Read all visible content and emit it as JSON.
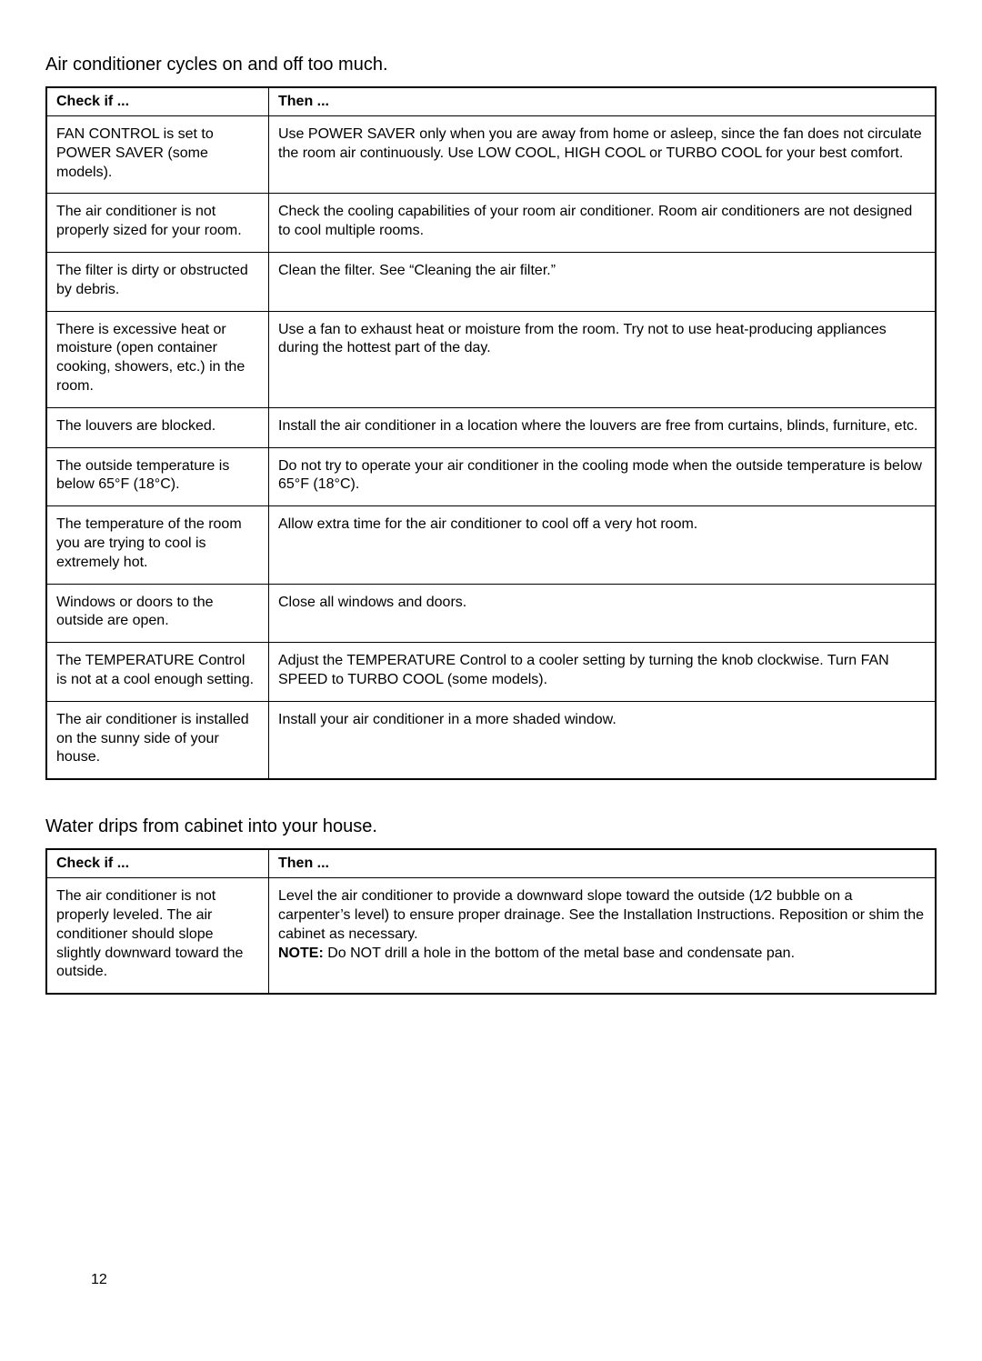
{
  "page_number": "12",
  "sections": [
    {
      "title": "Air conditioner cycles on and off too much.",
      "header_check": "Check if ...",
      "header_then": "Then ...",
      "rows": [
        {
          "check": "FAN CONTROL is set to POWER SAVER (some models).",
          "then": "Use POWER SAVER only when you are away from home or asleep, since the fan does not circulate the room air continuously. Use LOW COOL, HIGH COOL or TURBO COOL for your best comfort."
        },
        {
          "check": "The air conditioner is not properly sized for your room.",
          "then": "Check the cooling capabilities of your room air conditioner. Room air conditioners are not designed to cool multiple rooms."
        },
        {
          "check": "The filter is dirty or obstructed by debris.",
          "then": "Clean the filter. See “Cleaning the air filter.”"
        },
        {
          "check": "There is excessive heat or moisture (open container cooking, showers, etc.) in the room.",
          "then": "Use a fan to exhaust heat or moisture from the room. Try not to use heat-producing appliances during the hottest part of the day."
        },
        {
          "check": "The louvers are blocked.",
          "then": "Install the air conditioner in a location where the louvers are free from curtains, blinds, furniture, etc."
        },
        {
          "check": "The outside temperature is below 65°F (18°C).",
          "then": "Do not try to operate your air conditioner in the cooling mode when the outside temperature is below 65°F (18°C)."
        },
        {
          "check": "The temperature of the room you are trying to cool is extremely hot.",
          "then": "Allow extra time for the air conditioner to cool off a very hot room."
        },
        {
          "check": "Windows or doors to the outside are open.",
          "then": "Close all windows and doors."
        },
        {
          "check": "The TEMPERATURE Control is not at a cool enough setting.",
          "then": "Adjust the TEMPERATURE Control to a cooler setting by turning the knob clockwise. Turn FAN SPEED to TURBO COOL (some models)."
        },
        {
          "check": "The air conditioner is installed on the sunny side of your house.",
          "then": "Install your air conditioner in a more shaded window."
        }
      ]
    },
    {
      "title": "Water drips from cabinet into your house.",
      "header_check": "Check if ...",
      "header_then": "Then ...",
      "rows": [
        {
          "check": "The air conditioner is not properly leveled. The air conditioner should slope slightly downward toward the outside.",
          "then": "Level the air conditioner to provide a downward slope toward the outside (1⁄2 bubble on a carpenter’s level) to ensure proper drainage. See the Installation Instructions. Reposition or shim the cabinet as necessary.",
          "note_label": "NOTE:",
          "note_text": " Do NOT drill a hole in the bottom of the metal base and condensate pan."
        }
      ]
    }
  ]
}
